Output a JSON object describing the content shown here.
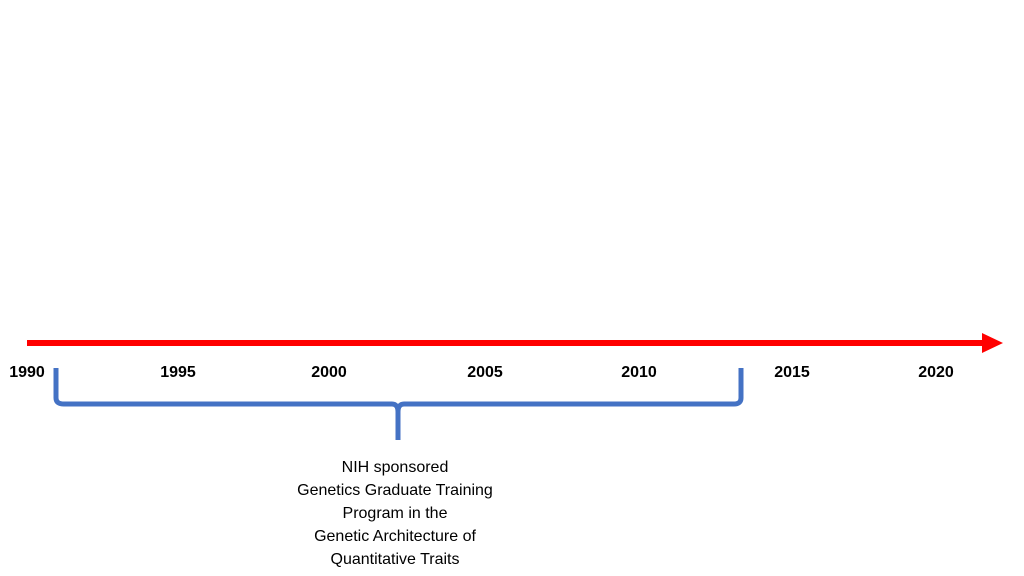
{
  "timeline": {
    "arrow_color": "#ff0000",
    "bracket_color": "#4472c4",
    "years": [
      "1990",
      "1995",
      "2000",
      "2005",
      "2010",
      "2015",
      "2020"
    ]
  },
  "annotation": {
    "span": {
      "start": 1991,
      "end": 2013
    },
    "lines": [
      "NIH sponsored",
      "Genetics Graduate Training",
      "Program in the",
      "Genetic Architecture of",
      "Quantitative Traits"
    ]
  }
}
